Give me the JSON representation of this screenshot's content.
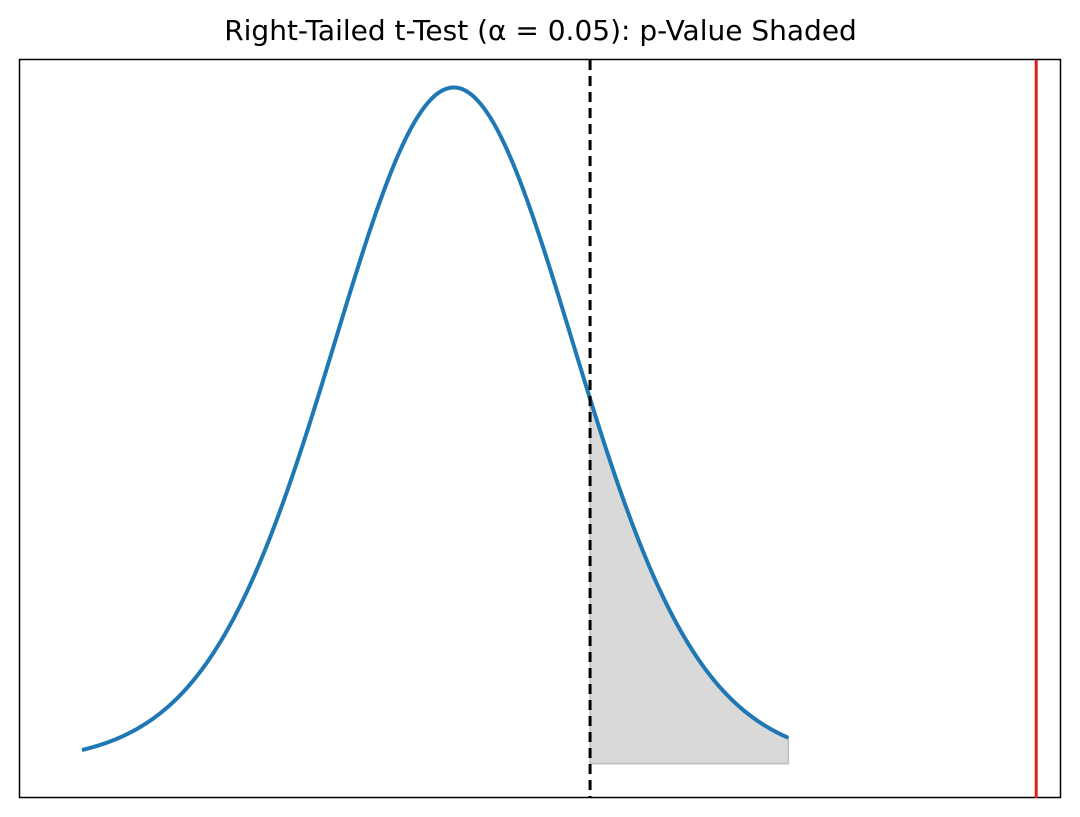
{
  "chart_data": {
    "type": "line",
    "title": "Right-Tailed t-Test (α = 0.05): p-Value Shaded",
    "xlabel": "",
    "ylabel": "",
    "axis_ticks_visible": false,
    "grid": false,
    "legend": "none",
    "xlim": [
      -3.5,
      4.9
    ],
    "ylim": [
      -0.02,
      0.41
    ],
    "series": [
      {
        "kind": "t-distribution density curve",
        "color": "#1f77b4",
        "degrees_of_freedom": 20,
        "x_range": [
          -3.0,
          2.7
        ]
      }
    ],
    "critical_value": {
      "x": 1.1,
      "style": "dashed",
      "color": "#000000"
    },
    "test_statistic_line": {
      "x": 4.7,
      "color": "#e41a1c"
    },
    "shaded_region": {
      "x_from": 1.1,
      "x_to": 2.7,
      "color": "#d9d9d9"
    }
  }
}
